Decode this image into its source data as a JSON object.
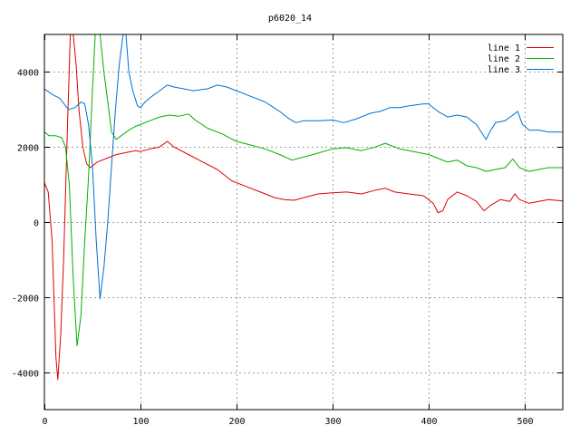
{
  "chart_data": {
    "type": "line",
    "title": "p6020_14",
    "xlabel": "",
    "ylabel": "",
    "xlim": [
      0,
      540
    ],
    "ylim": [
      -5000,
      5000
    ],
    "xticks": [
      0,
      100,
      200,
      300,
      400,
      500
    ],
    "yticks": [
      -4000,
      -2000,
      0,
      2000,
      4000
    ],
    "grid": true,
    "legend_position": "top-right",
    "series": [
      {
        "name": "line 1",
        "color": "#e00000",
        "points": [
          [
            0,
            1050
          ],
          [
            4,
            800
          ],
          [
            8,
            -500
          ],
          [
            12,
            -3600
          ],
          [
            14,
            -4200
          ],
          [
            17,
            -3000
          ],
          [
            20,
            -1000
          ],
          [
            24,
            2500
          ],
          [
            27,
            5000
          ],
          [
            30,
            5000
          ],
          [
            33,
            4200
          ],
          [
            36,
            3000
          ],
          [
            40,
            2000
          ],
          [
            44,
            1550
          ],
          [
            48,
            1450
          ],
          [
            55,
            1600
          ],
          [
            65,
            1700
          ],
          [
            75,
            1800
          ],
          [
            85,
            1850
          ],
          [
            95,
            1900
          ],
          [
            100,
            1880
          ],
          [
            110,
            1950
          ],
          [
            120,
            2000
          ],
          [
            128,
            2150
          ],
          [
            135,
            2000
          ],
          [
            150,
            1800
          ],
          [
            165,
            1600
          ],
          [
            180,
            1400
          ],
          [
            195,
            1100
          ],
          [
            210,
            950
          ],
          [
            225,
            800
          ],
          [
            240,
            650
          ],
          [
            250,
            600
          ],
          [
            260,
            580
          ],
          [
            270,
            650
          ],
          [
            285,
            750
          ],
          [
            300,
            780
          ],
          [
            315,
            800
          ],
          [
            330,
            750
          ],
          [
            345,
            850
          ],
          [
            355,
            900
          ],
          [
            365,
            800
          ],
          [
            380,
            750
          ],
          [
            395,
            700
          ],
          [
            405,
            500
          ],
          [
            410,
            250
          ],
          [
            415,
            300
          ],
          [
            420,
            600
          ],
          [
            430,
            800
          ],
          [
            440,
            700
          ],
          [
            450,
            550
          ],
          [
            458,
            300
          ],
          [
            465,
            450
          ],
          [
            475,
            600
          ],
          [
            485,
            550
          ],
          [
            490,
            750
          ],
          [
            495,
            600
          ],
          [
            505,
            500
          ],
          [
            515,
            550
          ],
          [
            525,
            600
          ],
          [
            540,
            560
          ]
        ]
      },
      {
        "name": "line 2",
        "color": "#00b000",
        "points": [
          [
            0,
            2400
          ],
          [
            5,
            2300
          ],
          [
            12,
            2300
          ],
          [
            18,
            2250
          ],
          [
            22,
            2000
          ],
          [
            26,
            1000
          ],
          [
            30,
            -1500
          ],
          [
            34,
            -3300
          ],
          [
            38,
            -2500
          ],
          [
            42,
            -500
          ],
          [
            46,
            1200
          ],
          [
            50,
            3500
          ],
          [
            53,
            5000
          ],
          [
            58,
            5000
          ],
          [
            62,
            4000
          ],
          [
            66,
            3200
          ],
          [
            70,
            2400
          ],
          [
            75,
            2200
          ],
          [
            80,
            2300
          ],
          [
            88,
            2450
          ],
          [
            95,
            2550
          ],
          [
            100,
            2600
          ],
          [
            110,
            2700
          ],
          [
            120,
            2800
          ],
          [
            130,
            2850
          ],
          [
            140,
            2820
          ],
          [
            150,
            2880
          ],
          [
            158,
            2700
          ],
          [
            170,
            2500
          ],
          [
            185,
            2350
          ],
          [
            200,
            2150
          ],
          [
            215,
            2050
          ],
          [
            230,
            1950
          ],
          [
            245,
            1800
          ],
          [
            258,
            1650
          ],
          [
            265,
            1700
          ],
          [
            280,
            1800
          ],
          [
            300,
            1950
          ],
          [
            315,
            1980
          ],
          [
            330,
            1900
          ],
          [
            345,
            2000
          ],
          [
            355,
            2100
          ],
          [
            370,
            1950
          ],
          [
            390,
            1850
          ],
          [
            400,
            1800
          ],
          [
            410,
            1700
          ],
          [
            420,
            1600
          ],
          [
            430,
            1650
          ],
          [
            440,
            1500
          ],
          [
            450,
            1450
          ],
          [
            460,
            1350
          ],
          [
            470,
            1400
          ],
          [
            480,
            1450
          ],
          [
            488,
            1680
          ],
          [
            495,
            1450
          ],
          [
            505,
            1350
          ],
          [
            515,
            1400
          ],
          [
            525,
            1450
          ],
          [
            540,
            1450
          ]
        ]
      },
      {
        "name": "line 3",
        "color": "#0070d0",
        "points": [
          [
            0,
            3550
          ],
          [
            8,
            3400
          ],
          [
            16,
            3300
          ],
          [
            25,
            3000
          ],
          [
            32,
            3050
          ],
          [
            38,
            3200
          ],
          [
            42,
            3150
          ],
          [
            46,
            2600
          ],
          [
            50,
            1500
          ],
          [
            54,
            -500
          ],
          [
            58,
            -2050
          ],
          [
            62,
            -1200
          ],
          [
            66,
            0
          ],
          [
            70,
            1500
          ],
          [
            74,
            3000
          ],
          [
            78,
            4200
          ],
          [
            82,
            5000
          ],
          [
            85,
            5000
          ],
          [
            88,
            4000
          ],
          [
            92,
            3500
          ],
          [
            97,
            3100
          ],
          [
            100,
            3050
          ],
          [
            105,
            3200
          ],
          [
            112,
            3350
          ],
          [
            120,
            3500
          ],
          [
            128,
            3650
          ],
          [
            135,
            3600
          ],
          [
            145,
            3550
          ],
          [
            155,
            3500
          ],
          [
            170,
            3550
          ],
          [
            180,
            3650
          ],
          [
            190,
            3600
          ],
          [
            200,
            3500
          ],
          [
            215,
            3350
          ],
          [
            230,
            3200
          ],
          [
            245,
            2950
          ],
          [
            255,
            2750
          ],
          [
            262,
            2650
          ],
          [
            270,
            2700
          ],
          [
            285,
            2700
          ],
          [
            300,
            2720
          ],
          [
            312,
            2650
          ],
          [
            325,
            2750
          ],
          [
            340,
            2900
          ],
          [
            350,
            2950
          ],
          [
            360,
            3050
          ],
          [
            370,
            3050
          ],
          [
            380,
            3100
          ],
          [
            395,
            3150
          ],
          [
            400,
            3150
          ],
          [
            410,
            2950
          ],
          [
            420,
            2800
          ],
          [
            430,
            2850
          ],
          [
            440,
            2800
          ],
          [
            450,
            2600
          ],
          [
            455,
            2400
          ],
          [
            460,
            2200
          ],
          [
            465,
            2450
          ],
          [
            470,
            2650
          ],
          [
            480,
            2700
          ],
          [
            488,
            2850
          ],
          [
            493,
            2950
          ],
          [
            498,
            2600
          ],
          [
            505,
            2450
          ],
          [
            515,
            2450
          ],
          [
            525,
            2400
          ],
          [
            540,
            2400
          ]
        ]
      }
    ]
  }
}
